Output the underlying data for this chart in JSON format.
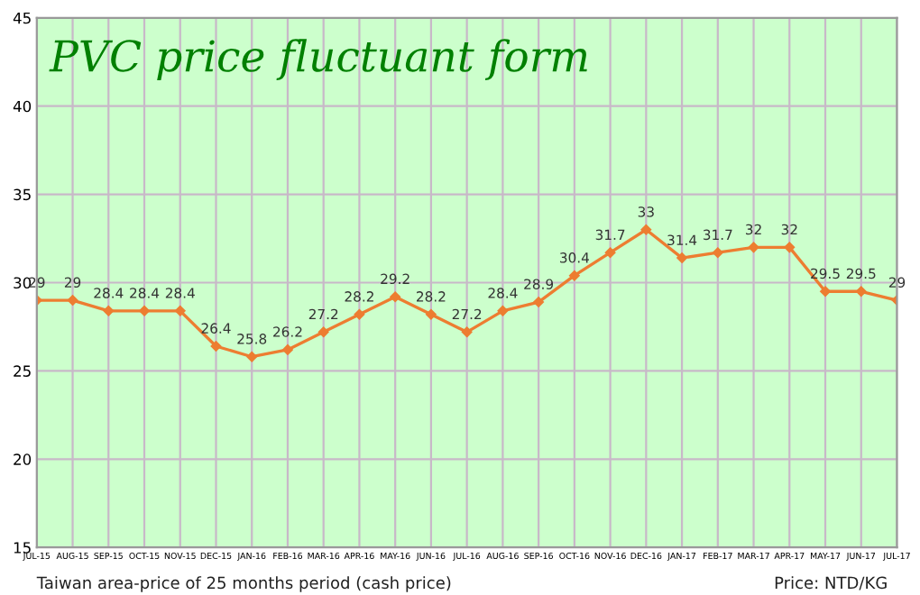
{
  "chart_data": {
    "type": "line",
    "title": "PVC price fluctuant form",
    "categories": [
      "JUL-15",
      "AUG-15",
      "SEP-15",
      "OCT-15",
      "NOV-15",
      "DEC-15",
      "JAN-16",
      "FEB-16",
      "MAR-16",
      "APR-16",
      "MAY-16",
      "JUN-16",
      "JUL-16",
      "AUG-16",
      "SEP-16",
      "OCT-16",
      "NOV-16",
      "DEC-16",
      "JAN-17",
      "FEB-17",
      "MAR-17",
      "APR-17",
      "MAY-17",
      "JUN-17",
      "JUL-17"
    ],
    "series": [
      {
        "color": "#ed7d31",
        "values": [
          29,
          29,
          28.4,
          28.4,
          28.4,
          26.4,
          25.8,
          26.2,
          27.2,
          28.2,
          29.2,
          28.2,
          27.2,
          28.4,
          28.9,
          30.4,
          31.7,
          33,
          31.4,
          31.7,
          32,
          32,
          29.5,
          29.5,
          29
        ]
      }
    ],
    "ylim": [
      15,
      45
    ],
    "yticks": [
      15,
      20,
      25,
      30,
      35,
      40,
      45
    ],
    "grid": true,
    "marker": "diamond",
    "line_style": "solid",
    "data_labels": true,
    "legend": false,
    "annotations": [
      "Taiwan area-price of 25 months period (cash price)",
      "Price: NTD/KG"
    ]
  }
}
